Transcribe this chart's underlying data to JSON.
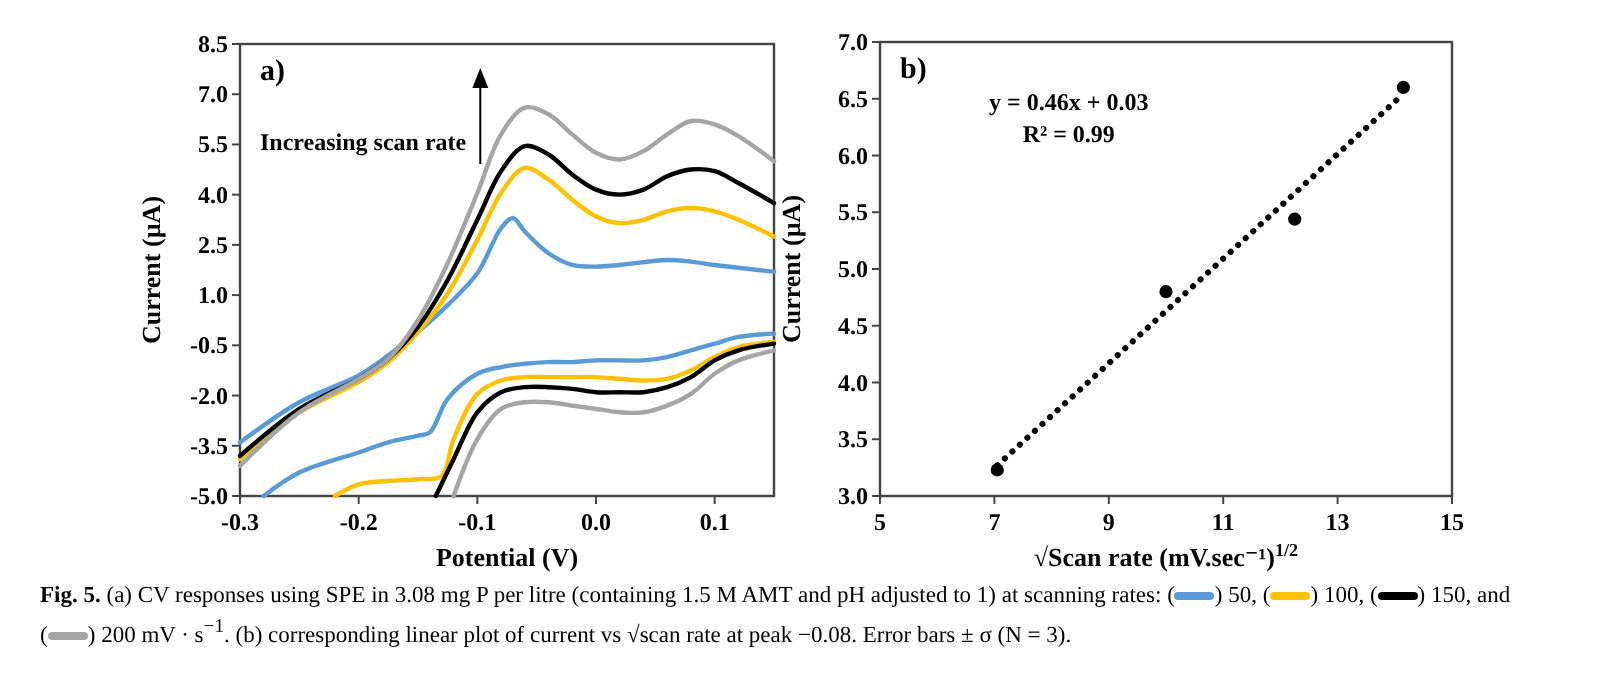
{
  "chart_data": [
    {
      "type": "line",
      "title": "a)",
      "xlabel": "Potential (V)",
      "ylabel": "Current (µA)",
      "legend": "bottom",
      "annotations": [
        "Increasing scan rate",
        "Fig. 5.",
        "(a) CV responses using SPE in 3.08 mg P per litre (containing 1.5 M AMT and pH adjusted to 1) at scanning rates:",
        "(",
        ")",
        ",",
        ", and",
        "mV · s$^{−1}$. (b) corresponding linear plot of current vs √scan rate at peak −0.08. Error bars ± σ (N = 3)."
      ],
      "xlim": [
        -0.3,
        0.15
      ],
      "xticks": [
        -0.3,
        -0.2,
        -0.1,
        {
          "value": 0,
          "label": "0.0"
        },
        0.1
      ],
      "ylim": [
        -5,
        8.5
      ],
      "yticks": [
        {
          "value": -5,
          "label": "-5.0"
        },
        -3.5,
        {
          "value": -2,
          "label": "-2.0"
        },
        -0.5,
        {
          "value": 1,
          "label": "1.0"
        },
        2.5,
        {
          "value": 4,
          "label": "4.0"
        },
        5.5,
        {
          "value": 7,
          "label": "7.0"
        },
        8.5
      ],
      "series": [
        {
          "name": "50",
          "color": "#5b9bd5",
          "x": [
            -0.3,
            -0.25,
            -0.2,
            -0.175,
            -0.15,
            -0.125,
            -0.1,
            -0.08,
            -0.07,
            -0.06,
            -0.04,
            -0.02,
            0,
            0.02,
            0.06,
            0.08,
            0.1,
            0.15
          ],
          "values": [
            -3.4,
            -2.2,
            -1.4,
            -0.8,
            -0.1,
            0.7,
            1.65,
            3.0,
            3.3,
            2.9,
            2.25,
            1.9,
            1.85,
            1.9,
            2.05,
            2.0,
            1.9,
            1.7
          ]
        },
        {
          "color": "#5b9bd5",
          "x": [
            0.15,
            0.12,
            0.1,
            0.08,
            0.06,
            0.04,
            0.02,
            0,
            -0.02,
            -0.04,
            -0.06,
            -0.08,
            -0.1,
            -0.125,
            -0.14,
            -0.15,
            -0.175,
            -0.2,
            -0.25,
            -0.28
          ],
          "values": [
            -0.15,
            -0.25,
            -0.45,
            -0.65,
            -0.85,
            -0.95,
            -0.95,
            -0.95,
            -1.0,
            -1.0,
            -1.05,
            -1.15,
            -1.35,
            -2.1,
            -3.1,
            -3.2,
            -3.4,
            -3.7,
            -4.3,
            -5.0
          ]
        },
        {
          "name": "100",
          "color": "#ffc000",
          "x": [
            -0.3,
            -0.25,
            -0.2,
            -0.175,
            -0.15,
            -0.125,
            -0.1,
            -0.08,
            -0.06,
            -0.04,
            -0.02,
            0,
            0.02,
            0.04,
            0.06,
            0.08,
            0.1,
            0.12,
            0.15
          ],
          "values": [
            -3.9,
            -2.5,
            -1.6,
            -1.0,
            -0.1,
            1.05,
            2.65,
            4.05,
            4.8,
            4.45,
            3.85,
            3.35,
            3.15,
            3.25,
            3.5,
            3.6,
            3.5,
            3.25,
            2.75
          ]
        },
        {
          "color": "#ffc000",
          "x": [
            0.15,
            0.12,
            0.1,
            0.08,
            0.06,
            0.04,
            0.02,
            0,
            -0.02,
            -0.04,
            -0.06,
            -0.08,
            -0.1,
            -0.12,
            -0.13,
            -0.15,
            -0.175,
            -0.2,
            -0.22
          ],
          "values": [
            -0.4,
            -0.55,
            -0.85,
            -1.25,
            -1.5,
            -1.55,
            -1.5,
            -1.45,
            -1.45,
            -1.45,
            -1.45,
            -1.55,
            -1.95,
            -3.3,
            -4.4,
            -4.5,
            -4.55,
            -4.65,
            -5.0
          ]
        },
        {
          "name": "150",
          "color": "#000000",
          "x": [
            -0.3,
            -0.25,
            -0.2,
            -0.175,
            -0.15,
            -0.125,
            -0.1,
            -0.08,
            -0.06,
            -0.04,
            -0.02,
            0,
            0.02,
            0.04,
            0.06,
            0.08,
            0.1,
            0.12,
            0.15
          ],
          "values": [
            -3.8,
            -2.4,
            -1.5,
            -0.9,
            0.05,
            1.45,
            3.25,
            4.7,
            5.45,
            5.2,
            4.6,
            4.15,
            4.0,
            4.15,
            4.55,
            4.75,
            4.7,
            4.35,
            3.75
          ]
        },
        {
          "color": "#000000",
          "x": [
            0.15,
            0.12,
            0.1,
            0.08,
            0.06,
            0.04,
            0.02,
            0,
            -0.02,
            -0.04,
            -0.06,
            -0.08,
            -0.1,
            -0.12,
            -0.135
          ],
          "values": [
            -0.45,
            -0.65,
            -0.95,
            -1.45,
            -1.75,
            -1.9,
            -1.9,
            -1.9,
            -1.8,
            -1.75,
            -1.75,
            -1.9,
            -2.5,
            -3.9,
            -5.0
          ]
        },
        {
          "name": "200",
          "color": "#a5a5a5",
          "x": [
            -0.3,
            -0.25,
            -0.2,
            -0.175,
            -0.15,
            -0.125,
            -0.1,
            -0.08,
            -0.06,
            -0.04,
            -0.02,
            0,
            0.02,
            0.04,
            0.06,
            0.08,
            0.1,
            0.12,
            0.15
          ],
          "values": [
            -4.1,
            -2.5,
            -1.5,
            -0.9,
            0.25,
            1.95,
            4.05,
            5.8,
            6.6,
            6.4,
            5.8,
            5.25,
            5.05,
            5.3,
            5.8,
            6.2,
            6.1,
            5.75,
            5.0
          ]
        },
        {
          "color": "#a5a5a5",
          "x": [
            0.15,
            0.12,
            0.1,
            0.08,
            0.06,
            0.04,
            0.02,
            0,
            -0.02,
            -0.04,
            -0.06,
            -0.08,
            -0.1,
            -0.12
          ],
          "values": [
            -0.65,
            -0.95,
            -1.35,
            -1.95,
            -2.3,
            -2.5,
            -2.5,
            -2.4,
            -2.3,
            -2.2,
            -2.2,
            -2.4,
            -3.3,
            -5.0
          ]
        }
      ]
    },
    {
      "type": "scatter",
      "title": "b)",
      "xlabel": "√Scan rate (mV.sec⁻¹)$^{1/2}$",
      "ylabel": "Current (µA)",
      "marker": "circle",
      "annotations": [
        "y = 0.46x + 0.03",
        "R² = 0.99"
      ],
      "xlim": [
        5,
        15
      ],
      "xticks": [
        5,
        7,
        9,
        11,
        13,
        15
      ],
      "ylim": [
        3,
        7
      ],
      "yticks": [
        {
          "value": 3,
          "label": "3.0"
        },
        3.5,
        {
          "value": 4,
          "label": "4.0"
        },
        4.5,
        {
          "value": 5,
          "label": "5.0"
        },
        5.5,
        {
          "value": 6,
          "label": "6.0"
        },
        6.5,
        {
          "value": 7,
          "label": "7.0"
        }
      ],
      "series": [
        {
          "color": "#000000",
          "x": [
            7.05,
            10.0,
            12.25,
            14.15
          ],
          "values": [
            3.23,
            4.8,
            5.44,
            6.6
          ]
        },
        {
          "type": "line",
          "line_style": "dotted",
          "marker": "none",
          "color": "#000000",
          "x": [
            7.05,
            14.1
          ],
          "values": [
            3.27,
            6.52
          ]
        }
      ]
    }
  ]
}
